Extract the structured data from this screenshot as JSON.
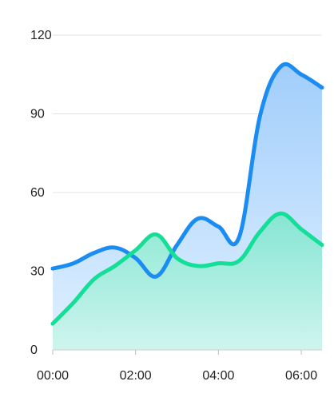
{
  "chart_data": {
    "type": "area",
    "x": [
      "00:00",
      "00:30",
      "01:00",
      "01:30",
      "02:00",
      "02:30",
      "03:00",
      "03:30",
      "04:00",
      "04:30",
      "05:00",
      "05:30",
      "06:00",
      "06:30"
    ],
    "x_tick_labels": [
      "00:00",
      "02:00",
      "04:00",
      "06:00"
    ],
    "y_tick_labels": [
      "0",
      "30",
      "60",
      "90",
      "120"
    ],
    "ylim": [
      0,
      120
    ],
    "series": [
      {
        "color": "#1b8cf2",
        "fill_top": "#9ccbfb",
        "fill_bottom": "#dff0ff",
        "values": [
          31,
          33,
          37,
          39,
          35,
          28,
          40,
          50,
          47,
          43,
          89,
          108,
          105,
          100
        ]
      },
      {
        "color": "#14df96",
        "fill_top": "#7fe6cf",
        "fill_bottom": "#cdf5ec",
        "values": [
          10,
          18,
          27,
          32,
          38,
          44,
          35,
          32,
          33,
          34,
          45,
          52,
          46,
          40
        ]
      }
    ],
    "grid": true,
    "legend": "none"
  }
}
